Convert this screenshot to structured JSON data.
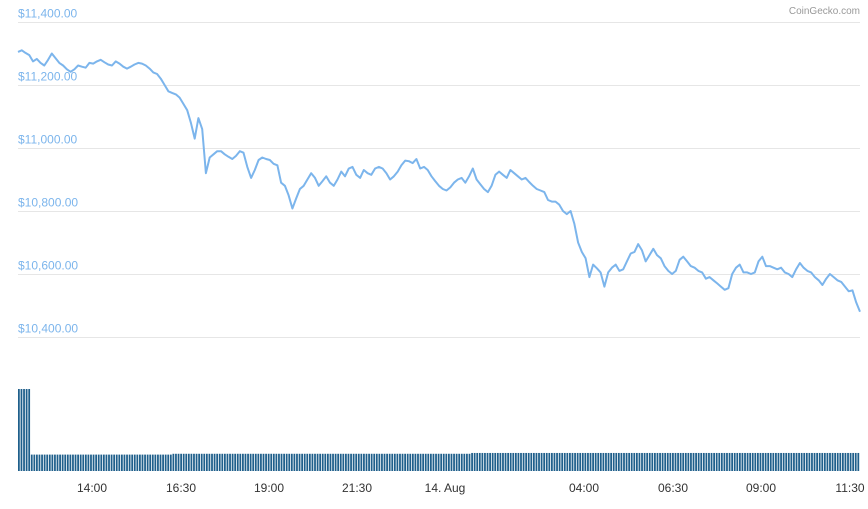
{
  "credit": "CoinGecko.com",
  "chart_data": {
    "type": "line",
    "title": "",
    "xlabel": "",
    "ylabel": "",
    "ylim": [
      10400,
      11400
    ],
    "y_ticks": [
      {
        "value": 11400,
        "label": "$11,400.00"
      },
      {
        "value": 11200,
        "label": "$11,200.00"
      },
      {
        "value": 11000,
        "label": "$11,000.00"
      },
      {
        "value": 10800,
        "label": "$10,800.00"
      },
      {
        "value": 10600,
        "label": "$10,600.00"
      },
      {
        "value": 10400,
        "label": "$10,400.00"
      }
    ],
    "x_ticks": [
      "14:00",
      "16:30",
      "19:00",
      "21:30",
      "14. Aug",
      "04:00",
      "06:30",
      "09:00",
      "11:30"
    ],
    "grid": true,
    "legend": "none",
    "colors": {
      "price": "#7cb5ec",
      "volume": "#1f5f8b",
      "grid": "#e6e6e6"
    },
    "series": [
      {
        "values": [
          11305,
          11310,
          11302,
          11295,
          11275,
          11283,
          11270,
          11262,
          11280,
          11300,
          11285,
          11270,
          11262,
          11250,
          11242,
          11250,
          11262,
          11258,
          11255,
          11270,
          11268,
          11275,
          11280,
          11272,
          11265,
          11262,
          11275,
          11268,
          11258,
          11252,
          11258,
          11265,
          11270,
          11268,
          11262,
          11252,
          11240,
          11235,
          11220,
          11200,
          11180,
          11175,
          11170,
          11160,
          11140,
          11120,
          11080,
          11030,
          11095,
          11060,
          10920,
          10970,
          10980,
          10990,
          10990,
          10980,
          10972,
          10965,
          10975,
          10990,
          10985,
          10940,
          10905,
          10930,
          10962,
          10970,
          10965,
          10962,
          10950,
          10945,
          10890,
          10880,
          10850,
          10808,
          10840,
          10870,
          10880,
          10900,
          10920,
          10905,
          10880,
          10895,
          10910,
          10890,
          10880,
          10900,
          10925,
          10910,
          10935,
          10940,
          10915,
          10905,
          10930,
          10920,
          10915,
          10935,
          10940,
          10935,
          10920,
          10900,
          10910,
          10925,
          10945,
          10960,
          10958,
          10952,
          10965,
          10935,
          10940,
          10930,
          10910,
          10895,
          10880,
          10870,
          10865,
          10875,
          10890,
          10900,
          10905,
          10890,
          10910,
          10935,
          10900,
          10885,
          10870,
          10860,
          10880,
          10915,
          10925,
          10915,
          10905,
          10930,
          10920,
          10910,
          10900,
          10905,
          10892,
          10880,
          10870,
          10865,
          10860,
          10835,
          10830,
          10830,
          10820,
          10800,
          10790,
          10800,
          10760,
          10700,
          10670,
          10650,
          10590,
          10630,
          10618,
          10605,
          10560,
          10605,
          10620,
          10630,
          10610,
          10615,
          10640,
          10665,
          10670,
          10695,
          10675,
          10640,
          10660,
          10680,
          10660,
          10650,
          10625,
          10610,
          10600,
          10610,
          10645,
          10655,
          10640,
          10625,
          10620,
          10610,
          10605,
          10585,
          10590,
          10580,
          10570,
          10560,
          10550,
          10555,
          10600,
          10620,
          10630,
          10605,
          10605,
          10600,
          10605,
          10640,
          10655,
          10625,
          10625,
          10620,
          10615,
          10620,
          10605,
          10600,
          10590,
          10615,
          10635,
          10620,
          10610,
          10605,
          10590,
          10580,
          10565,
          10585,
          10600,
          10590,
          10580,
          10575,
          10560,
          10545,
          10548,
          10510,
          10480
        ]
      }
    ],
    "volume": [
      100,
      100,
      100,
      100,
      100,
      20,
      20,
      20,
      20,
      20,
      20,
      20,
      20,
      20,
      20,
      20,
      20,
      20,
      20,
      20,
      20,
      20,
      20,
      20,
      20,
      20,
      20,
      20,
      20,
      20,
      20,
      20,
      20,
      20,
      20,
      20,
      20,
      20,
      20,
      20,
      20,
      20,
      20,
      20,
      20,
      20,
      20,
      20,
      20,
      20,
      20,
      20,
      20,
      20,
      20,
      20,
      20,
      20,
      20,
      20,
      21,
      21,
      21,
      21,
      21,
      21,
      21,
      21,
      21,
      21,
      21,
      21,
      21,
      21,
      21,
      21,
      21,
      21,
      21,
      21,
      21,
      21,
      21,
      21,
      21,
      21,
      21,
      21,
      21,
      21,
      21,
      21,
      21,
      21,
      21,
      21,
      21,
      21,
      21,
      21,
      21,
      21,
      21,
      21,
      21,
      21,
      21,
      21,
      21,
      21,
      21,
      21,
      21,
      21,
      21,
      21,
      21,
      21,
      21,
      21,
      21,
      21,
      21,
      21,
      21,
      21,
      21,
      21,
      21,
      21,
      21,
      21,
      21,
      21,
      21,
      21,
      21,
      21,
      21,
      21,
      21,
      21,
      21,
      21,
      21,
      21,
      21,
      21,
      21,
      21,
      21,
      21,
      21,
      21,
      21,
      21,
      21,
      21,
      21,
      21,
      21,
      21,
      21,
      21,
      21,
      21,
      21,
      21,
      21,
      21,
      21,
      21,
      21,
      21,
      21,
      21,
      22,
      22,
      22,
      22,
      22,
      22,
      22,
      22,
      22,
      22,
      22,
      22,
      22,
      22,
      22,
      22,
      22,
      22,
      22,
      22,
      22,
      22,
      22,
      22,
      22,
      22,
      22,
      22,
      22,
      22,
      22,
      22,
      22,
      22,
      22,
      22,
      22,
      22,
      22,
      22,
      22,
      22,
      22,
      22,
      22,
      22,
      22,
      22,
      22,
      22,
      22,
      22,
      22,
      22,
      22,
      22,
      22,
      22,
      22,
      22,
      22,
      22,
      22,
      22,
      22,
      22,
      22,
      22,
      22,
      22,
      22,
      22,
      22,
      22,
      22,
      22,
      22,
      22,
      22,
      22,
      22,
      22,
      22,
      22,
      22,
      22,
      22,
      22,
      22,
      22,
      22,
      22,
      22,
      22,
      22,
      22,
      22,
      22,
      22,
      22,
      22,
      22,
      22,
      22,
      22,
      22,
      22,
      22,
      22,
      22,
      22,
      22,
      22,
      22,
      22,
      22,
      22,
      22,
      22,
      22,
      22,
      22,
      22,
      22,
      22,
      22,
      22,
      22,
      22,
      22,
      22,
      22,
      22,
      22,
      22,
      22,
      22,
      22,
      22,
      22,
      22,
      22,
      22,
      22,
      22,
      22,
      22,
      22,
      22,
      22,
      22
    ]
  }
}
